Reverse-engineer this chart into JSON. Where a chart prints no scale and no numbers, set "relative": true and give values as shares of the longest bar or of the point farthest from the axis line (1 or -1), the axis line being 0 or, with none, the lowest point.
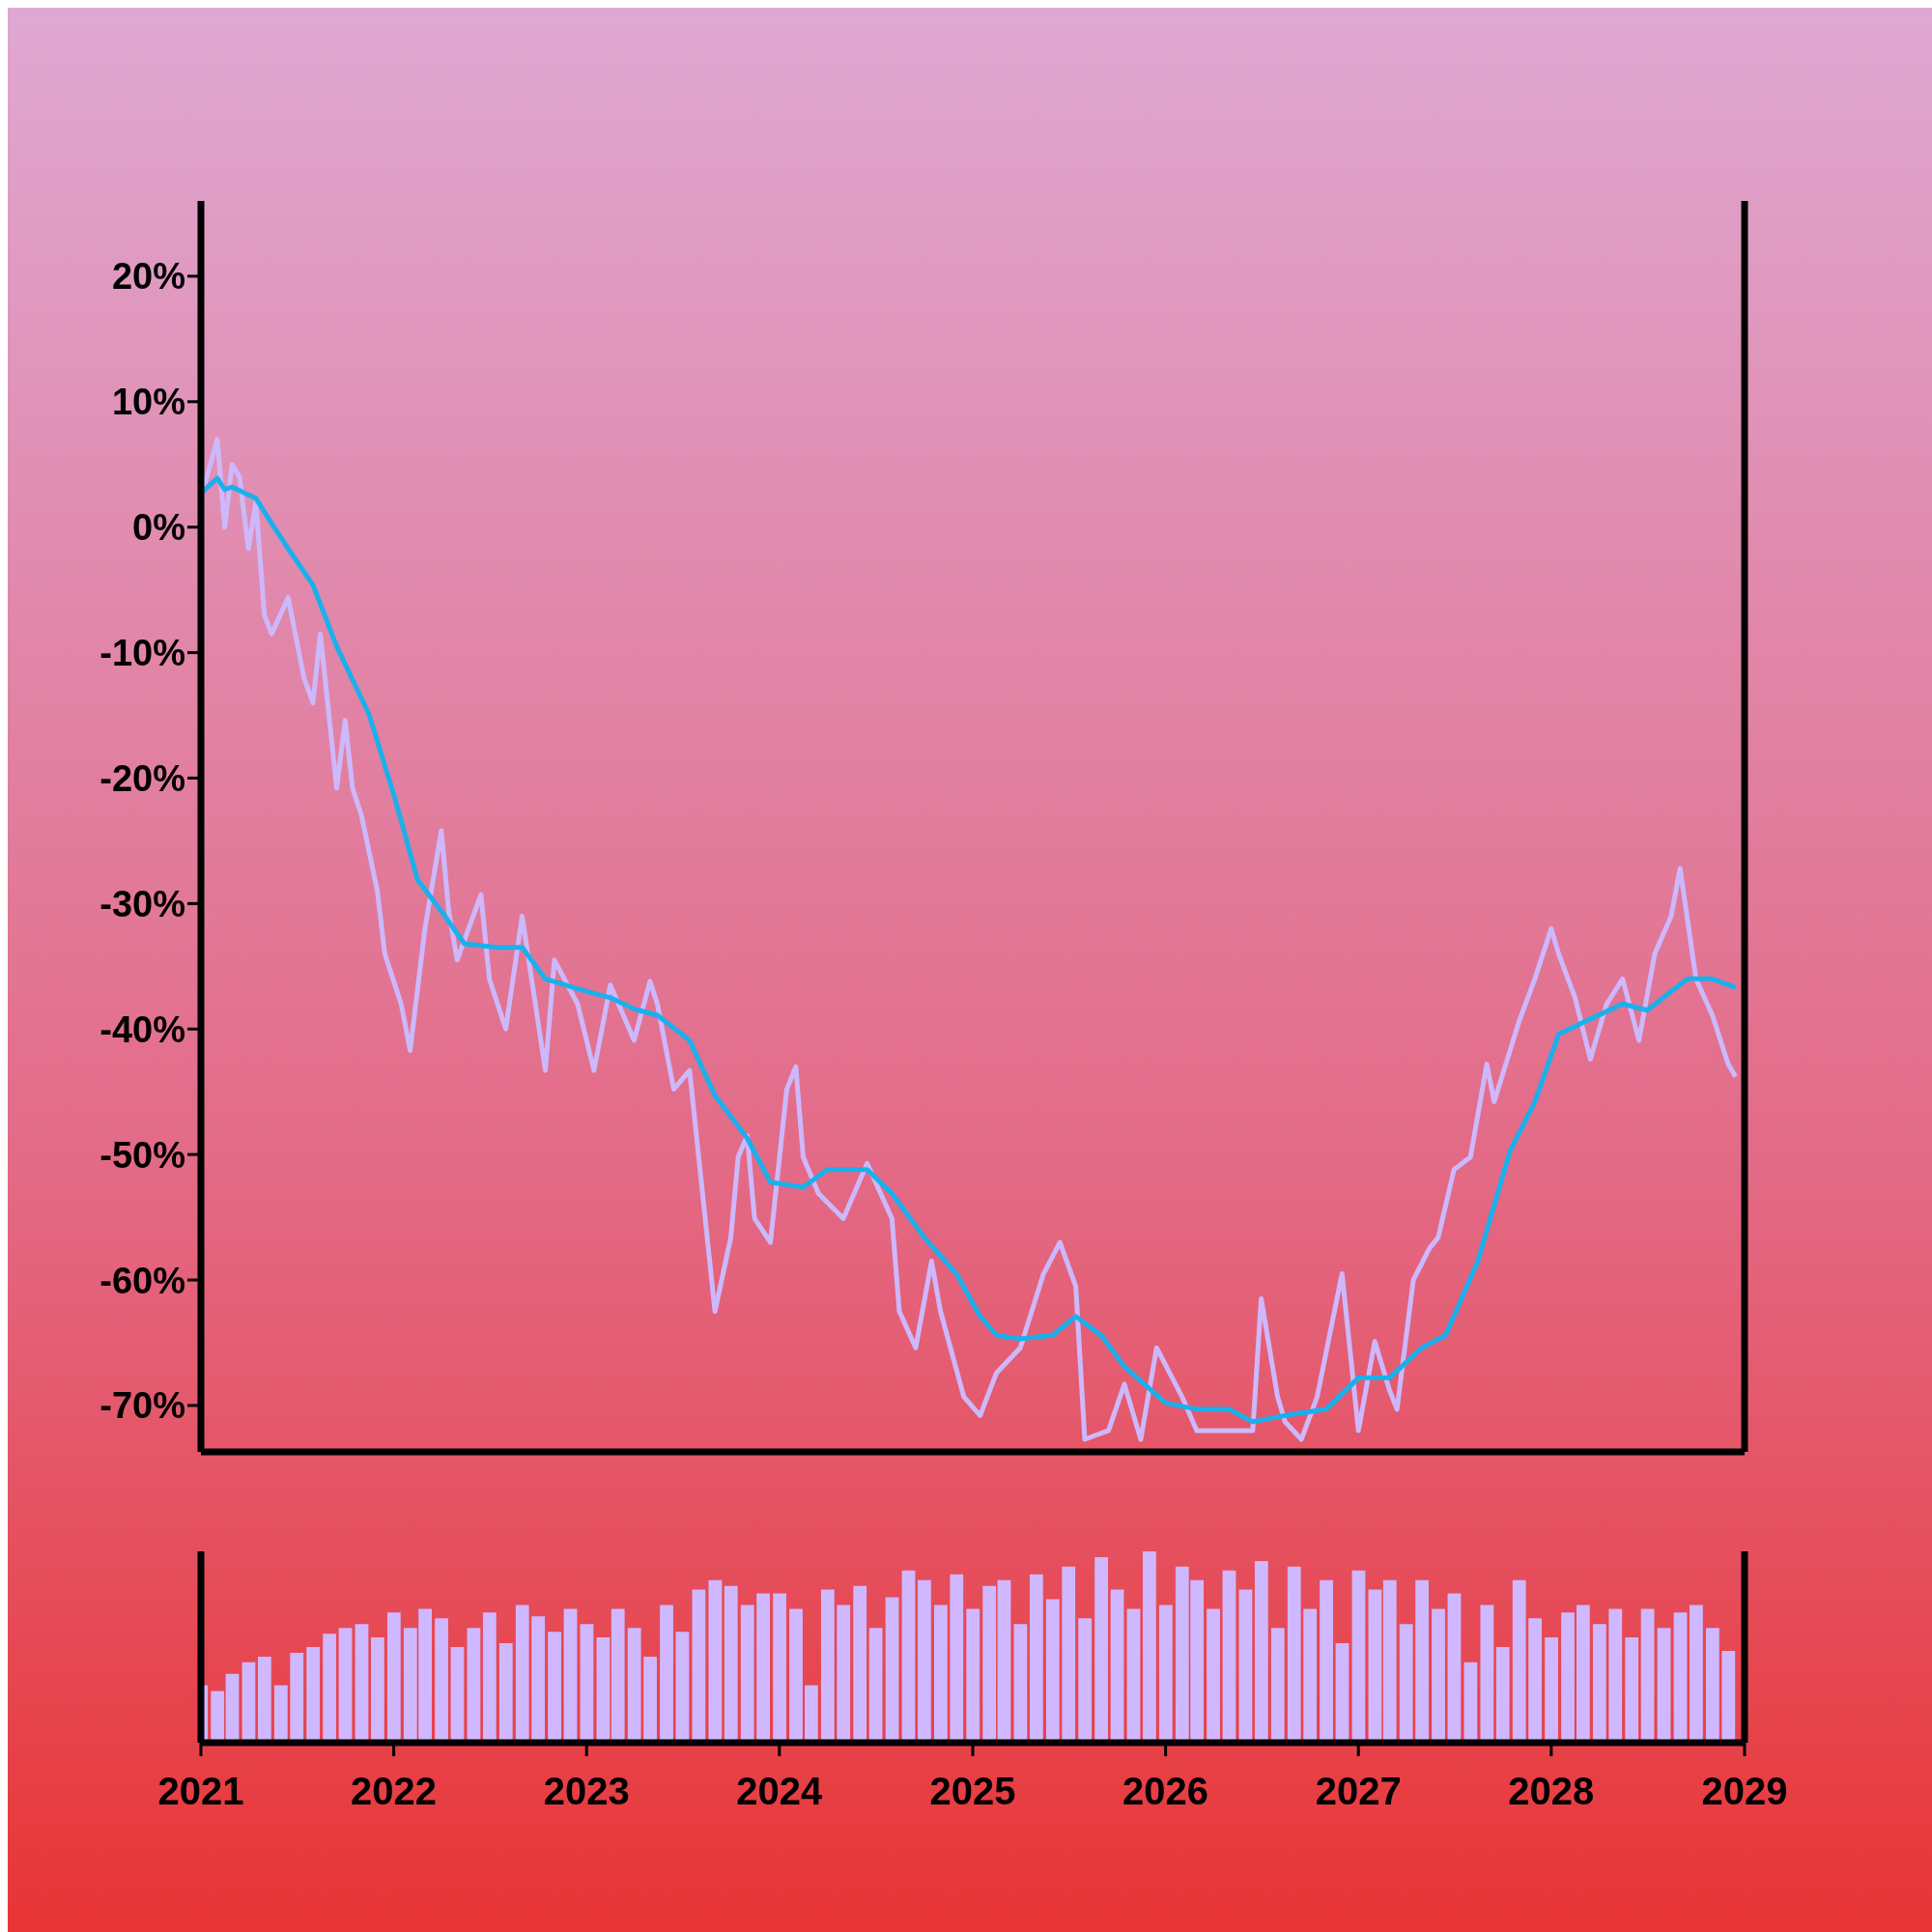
{
  "chart_data": [
    {
      "type": "line",
      "xlim": [
        "2021",
        "2029"
      ],
      "ylim": [
        -73.7,
        26
      ],
      "yticks": [
        {
          "value": 20,
          "label": "20%"
        },
        {
          "value": 10,
          "label": "10%"
        },
        {
          "value": 0,
          "label": "0%"
        },
        {
          "value": -10,
          "label": "-10%"
        },
        {
          "value": -20,
          "label": "-20%"
        },
        {
          "value": -30,
          "label": "-30%"
        },
        {
          "value": -40,
          "label": "-40%"
        },
        {
          "value": -50,
          "label": "-50%"
        },
        {
          "value": -60,
          "label": "-60%"
        },
        {
          "value": -70,
          "label": "-70%"
        }
      ],
      "tick_labels": "y",
      "marker": "none",
      "line_style": "solid",
      "series": [
        {
          "color": "#cdb8fb",
          "x": [
            "2021-01-01",
            "2021-02-01",
            "2021-02-15",
            "2021-03-01",
            "2021-03-15",
            "2021-04-01",
            "2021-04-15",
            "2021-05-01",
            "2021-05-15",
            "2021-06-15",
            "2021-07-15",
            "2021-08-01",
            "2021-08-15",
            "2021-09-15",
            "2021-10-01",
            "2021-10-15",
            "2021-11-01",
            "2021-12-01",
            "2021-12-15",
            "2022-01-15",
            "2022-02-01",
            "2022-03-01",
            "2022-04-01",
            "2022-04-15",
            "2022-05-01",
            "2022-06-15",
            "2022-07-01",
            "2022-08-01",
            "2022-09-01",
            "2022-10-15",
            "2022-11-01",
            "2022-12-15",
            "2023-01-15",
            "2023-02-15",
            "2023-04-01",
            "2023-05-01",
            "2023-05-15",
            "2023-06-15",
            "2023-07-15",
            "2023-09-01",
            "2023-10-01",
            "2023-10-15",
            "2023-11-01",
            "2023-11-15",
            "2023-12-15",
            "2024-01-15",
            "2024-02-01",
            "2024-02-15",
            "2024-03-15",
            "2024-05-01",
            "2024-06-15",
            "2024-08-01",
            "2024-08-15",
            "2024-09-15",
            "2024-10-15",
            "2024-11-01",
            "2024-12-15",
            "2025-01-15",
            "2025-02-15",
            "2025-04-01",
            "2025-05-15",
            "2025-06-15",
            "2025-07-15",
            "2025-08-01",
            "2025-09-15",
            "2025-10-15",
            "2025-11-15",
            "2025-12-15",
            "2026-02-01",
            "2026-03-01",
            "2026-05-01",
            "2026-06-15",
            "2026-07-01",
            "2026-08-01",
            "2026-08-15",
            "2026-09-15",
            "2026-10-15",
            "2026-12-01",
            "2027-01-01",
            "2027-02-01",
            "2027-03-01",
            "2027-03-15",
            "2027-04-15",
            "2027-05-15",
            "2027-06-01",
            "2027-07-01",
            "2027-08-01",
            "2027-09-01",
            "2027-09-15",
            "2027-11-01",
            "2027-12-01",
            "2028-01-01",
            "2028-01-15",
            "2028-02-15",
            "2028-03-15",
            "2028-04-15",
            "2028-05-15",
            "2028-06-15",
            "2028-07-15",
            "2028-08-15",
            "2028-09-01",
            "2028-10-01",
            "2028-11-01",
            "2028-12-01",
            "2028-12-15"
          ],
          "values": [
            2.3,
            7,
            0,
            5,
            4,
            -1.7,
            2,
            -7,
            -8.5,
            -5.6,
            -12,
            -14,
            -8.5,
            -20.8,
            -15.4,
            -20.8,
            -23,
            -29,
            -34,
            -38,
            -41.7,
            -32,
            -24.2,
            -30.6,
            -34.5,
            -29.3,
            -36,
            -40,
            -31,
            -43.3,
            -34.5,
            -38,
            -43.3,
            -36.5,
            -40.9,
            -36.2,
            -38,
            -44.8,
            -43.3,
            -62.5,
            -56.6,
            -50.2,
            -48.5,
            -55.1,
            -57,
            -44.8,
            -43,
            -50.2,
            -53.1,
            -55.1,
            -50.7,
            -55.1,
            -62.5,
            -65.4,
            -58.5,
            -62.5,
            -69.3,
            -70.8,
            -67.4,
            -65.4,
            -59.5,
            -57,
            -60.5,
            -72.7,
            -72,
            -68.3,
            -72.7,
            -65.4,
            -69.3,
            -72,
            -72,
            -72,
            -61.5,
            -69.3,
            -71.3,
            -72.7,
            -69.3,
            -59.5,
            -72,
            -64.9,
            -68.8,
            -70.3,
            -60,
            -57.5,
            -56.6,
            -51.2,
            -50.2,
            -42.8,
            -45.8,
            -39.4,
            -36,
            -32,
            -34,
            -37.5,
            -42.4,
            -38,
            -36,
            -40.9,
            -34,
            -31,
            -27.2,
            -36,
            -38.9,
            -42.8,
            -43.8
          ]
        },
        {
          "color": "#1ab0ec",
          "x": [
            "2021-01-01",
            "2021-02-01",
            "2021-02-15",
            "2021-03-01",
            "2021-04-15",
            "2021-05-15",
            "2021-06-15",
            "2021-08-01",
            "2021-09-15",
            "2021-11-15",
            "2022-01-01",
            "2022-02-15",
            "2022-04-01",
            "2022-05-15",
            "2022-07-15",
            "2022-09-01",
            "2022-10-15",
            "2023-01-01",
            "2023-02-15",
            "2023-04-01",
            "2023-05-15",
            "2023-07-15",
            "2023-09-01",
            "2023-11-01",
            "2023-12-15",
            "2024-02-15",
            "2024-04-01",
            "2024-06-15",
            "2024-08-01",
            "2024-10-01",
            "2024-12-01",
            "2025-01-15",
            "2025-02-15",
            "2025-04-01",
            "2025-06-01",
            "2025-07-15",
            "2025-09-01",
            "2025-10-15",
            "2026-01-01",
            "2026-03-01",
            "2026-05-01",
            "2026-06-15",
            "2026-08-15",
            "2026-11-01",
            "2027-01-01",
            "2027-03-01",
            "2027-05-01",
            "2027-06-15",
            "2027-08-15",
            "2027-10-15",
            "2027-12-01",
            "2028-01-15",
            "2028-03-15",
            "2028-05-15",
            "2028-07-01",
            "2028-08-15",
            "2028-09-15",
            "2028-11-01",
            "2028-12-15"
          ],
          "values": [
            2.7,
            3.9,
            3,
            3.2,
            2.3,
            0.3,
            -1.7,
            -4.6,
            -9.5,
            -14.9,
            -21.3,
            -28.1,
            -30.6,
            -33.2,
            -33.5,
            -33.5,
            -36,
            -37,
            -37.5,
            -38.4,
            -38.9,
            -40.9,
            -45.3,
            -48.7,
            -52.2,
            -52.6,
            -51.2,
            -51.2,
            -53.1,
            -56.6,
            -59.5,
            -62.9,
            -64.4,
            -64.7,
            -64.4,
            -62.9,
            -64.4,
            -66.9,
            -69.8,
            -70.3,
            -70.3,
            -71.3,
            -70.8,
            -70.3,
            -67.8,
            -67.8,
            -65.4,
            -64.4,
            -58.5,
            -49.7,
            -45.8,
            -40.4,
            -39.2,
            -38,
            -38.5,
            -37,
            -36,
            -36,
            -36.7
          ]
        }
      ]
    },
    {
      "type": "bar",
      "relative": true,
      "color": "#cfb8ff",
      "xlim": [
        "2021",
        "2029"
      ],
      "xticks": [
        "2021",
        "2022",
        "2023",
        "2024",
        "2025",
        "2026",
        "2027",
        "2028",
        "2029"
      ],
      "tick_labels": "x",
      "x": [
        "2021-01",
        "2021-02",
        "2021-03",
        "2021-04",
        "2021-05",
        "2021-06",
        "2021-07",
        "2021-08",
        "2021-09",
        "2021-10",
        "2021-11",
        "2021-12",
        "2022-01",
        "2022-02",
        "2022-03",
        "2022-04",
        "2022-05",
        "2022-06",
        "2022-07",
        "2022-08",
        "2022-09",
        "2022-10",
        "2022-11",
        "2022-12",
        "2023-01",
        "2023-02",
        "2023-03",
        "2023-04",
        "2023-05",
        "2023-06",
        "2023-07",
        "2023-08",
        "2023-09",
        "2023-10",
        "2023-11",
        "2023-12",
        "2024-01",
        "2024-02",
        "2024-03",
        "2024-04",
        "2024-05",
        "2024-06",
        "2024-07",
        "2024-08",
        "2024-09",
        "2024-10",
        "2024-11",
        "2024-12",
        "2025-01",
        "2025-02",
        "2025-03",
        "2025-04",
        "2025-05",
        "2025-06",
        "2025-07",
        "2025-08",
        "2025-09",
        "2025-10",
        "2025-11",
        "2025-12",
        "2026-01",
        "2026-02",
        "2026-03",
        "2026-04",
        "2026-05",
        "2026-06",
        "2026-07",
        "2026-08",
        "2026-09",
        "2026-10",
        "2026-11",
        "2026-12",
        "2027-01",
        "2027-02",
        "2027-03",
        "2027-04",
        "2027-05",
        "2027-06",
        "2027-07",
        "2027-08",
        "2027-09",
        "2027-10",
        "2027-11",
        "2027-12",
        "2028-01",
        "2028-02",
        "2028-03",
        "2028-04",
        "2028-05",
        "2028-06",
        "2028-07",
        "2028-08",
        "2028-09",
        "2028-10",
        "2028-11",
        "2028-12"
      ],
      "values": [
        0.3,
        0.27,
        0.36,
        0.42,
        0.45,
        0.3,
        0.47,
        0.5,
        0.57,
        0.6,
        0.62,
        0.55,
        0.68,
        0.6,
        0.7,
        0.65,
        0.5,
        0.6,
        0.68,
        0.52,
        0.72,
        0.66,
        0.58,
        0.7,
        0.62,
        0.55,
        0.7,
        0.6,
        0.45,
        0.72,
        0.58,
        0.8,
        0.85,
        0.82,
        0.72,
        0.78,
        0.78,
        0.7,
        0.3,
        0.8,
        0.72,
        0.82,
        0.6,
        0.76,
        0.9,
        0.85,
        0.72,
        0.88,
        0.7,
        0.82,
        0.85,
        0.62,
        0.88,
        0.75,
        0.92,
        0.65,
        0.97,
        0.8,
        0.7,
        1,
        0.72,
        0.92,
        0.85,
        0.7,
        0.9,
        0.8,
        0.95,
        0.6,
        0.92,
        0.7,
        0.85,
        0.52,
        0.9,
        0.8,
        0.85,
        0.62,
        0.85,
        0.7,
        0.78,
        0.42,
        0.72,
        0.5,
        0.85,
        0.65,
        0.55,
        0.68,
        0.72,
        0.62,
        0.7,
        0.55,
        0.7,
        0.6,
        0.68,
        0.72,
        0.6,
        0.48
      ]
    }
  ]
}
